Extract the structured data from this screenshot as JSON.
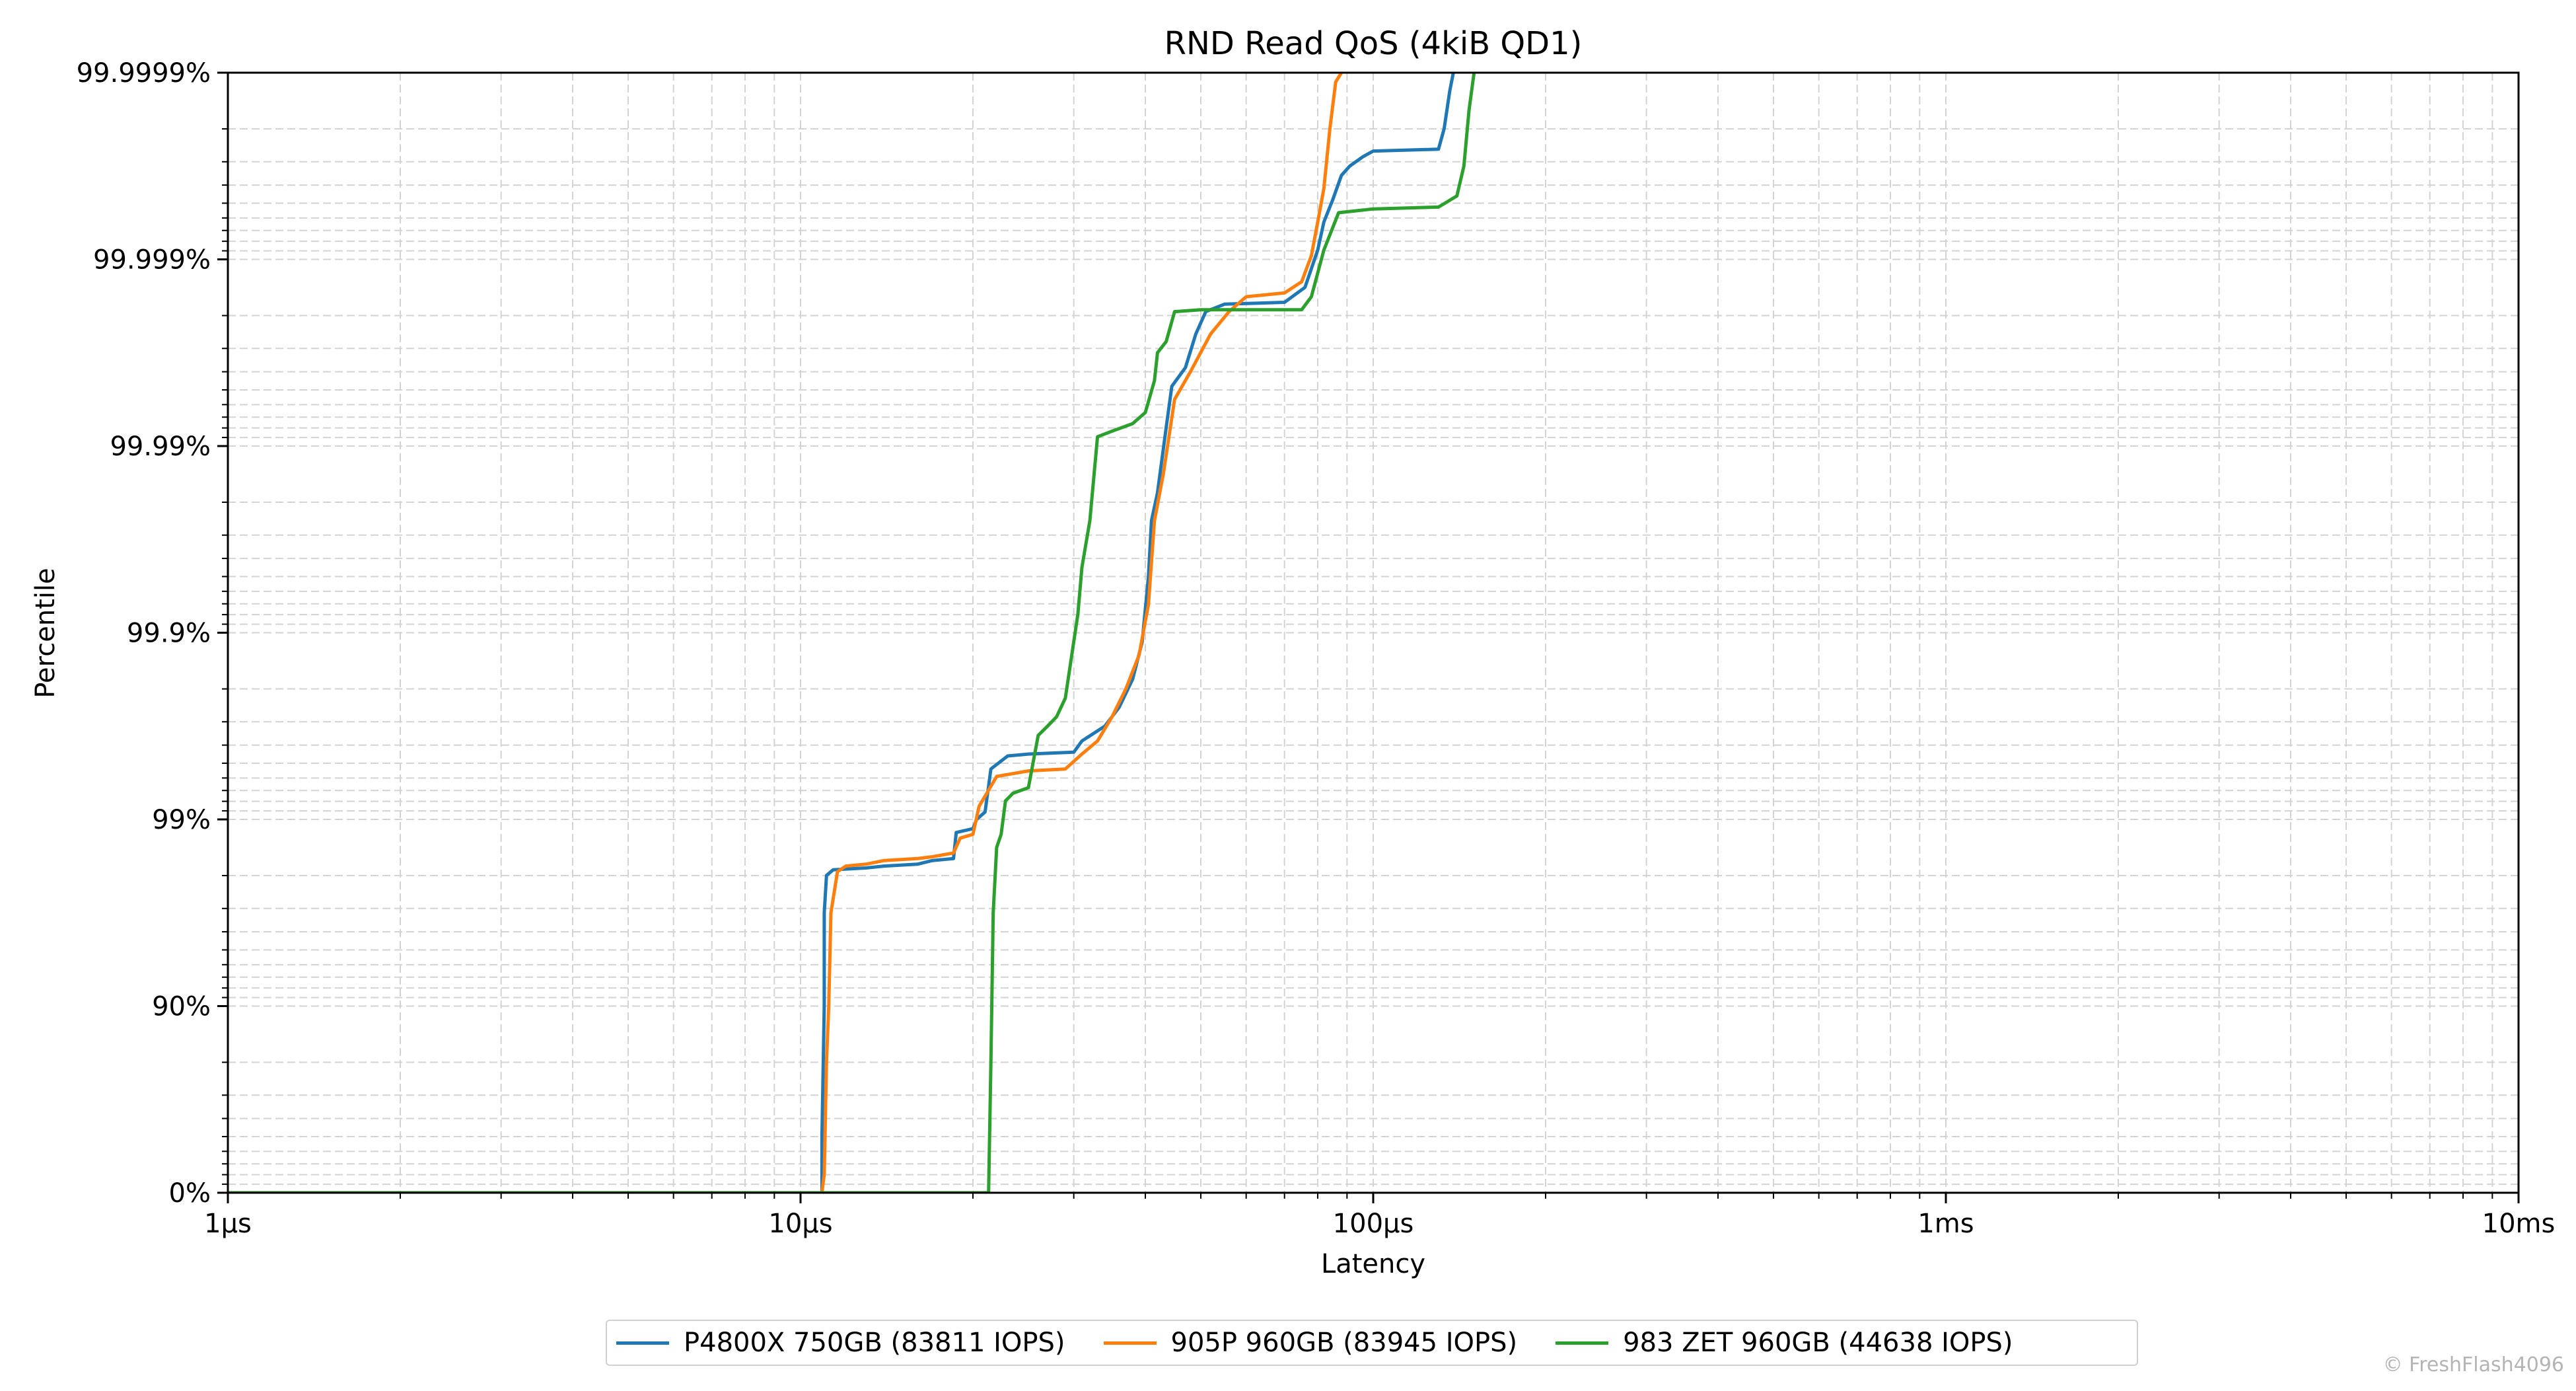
{
  "chart_data": {
    "type": "line",
    "title": "RND Read QoS (4kiB QD1)",
    "xlabel": "Latency",
    "ylabel": "Percentile",
    "x_scale": "log",
    "y_scale": "nines",
    "xlim_us": [
      1,
      10000
    ],
    "ylim_nines": [
      0,
      6
    ],
    "grid": true,
    "legend_position": "bottom-center",
    "x_ticks": [
      {
        "value": 1,
        "label": "1µs"
      },
      {
        "value": 10,
        "label": "10µs"
      },
      {
        "value": 100,
        "label": "100µs"
      },
      {
        "value": 1000,
        "label": "1ms"
      },
      {
        "value": 10000,
        "label": "10ms"
      }
    ],
    "y_ticks": [
      {
        "nines": 0,
        "label": "0%"
      },
      {
        "nines": 1,
        "label": "90%"
      },
      {
        "nines": 2,
        "label": "99%"
      },
      {
        "nines": 3,
        "label": "99.9%"
      },
      {
        "nines": 4,
        "label": "99.99%"
      },
      {
        "nines": 5,
        "label": "99.999%"
      },
      {
        "nines": 6,
        "label": "99.9999%"
      }
    ],
    "series": [
      {
        "name": "P4800X 750GB (83811 IOPS)",
        "color": "#1f77b4",
        "points_us_nines": [
          [
            1,
            0
          ],
          [
            10.9,
            0
          ],
          [
            10.9,
            0.3
          ],
          [
            11.0,
            1.0
          ],
          [
            11.0,
            1.5
          ],
          [
            11.1,
            1.7
          ],
          [
            11.4,
            1.73
          ],
          [
            13,
            1.74
          ],
          [
            14,
            1.75
          ],
          [
            16,
            1.76
          ],
          [
            17,
            1.78
          ],
          [
            18.5,
            1.79
          ],
          [
            18.7,
            1.93
          ],
          [
            20,
            1.95
          ],
          [
            20.3,
            2.0
          ],
          [
            21,
            2.04
          ],
          [
            21.5,
            2.27
          ],
          [
            23,
            2.34
          ],
          [
            25,
            2.35
          ],
          [
            30,
            2.36
          ],
          [
            31,
            2.42
          ],
          [
            34,
            2.5
          ],
          [
            36,
            2.6
          ],
          [
            38,
            2.75
          ],
          [
            39.5,
            2.95
          ],
          [
            40.5,
            3.3
          ],
          [
            41,
            3.6
          ],
          [
            42,
            3.75
          ],
          [
            43.5,
            4.1
          ],
          [
            44.5,
            4.32
          ],
          [
            47,
            4.42
          ],
          [
            49,
            4.6
          ],
          [
            51,
            4.72
          ],
          [
            55,
            4.76
          ],
          [
            70,
            4.77
          ],
          [
            76,
            4.85
          ],
          [
            80,
            5.05
          ],
          [
            82,
            5.2
          ],
          [
            85,
            5.32
          ],
          [
            88,
            5.45
          ],
          [
            91,
            5.5
          ],
          [
            96,
            5.55
          ],
          [
            100,
            5.58
          ],
          [
            130,
            5.59
          ],
          [
            133,
            5.7
          ],
          [
            136,
            5.9
          ],
          [
            138,
            6.0
          ]
        ]
      },
      {
        "name": "905P 960GB (83945 IOPS)",
        "color": "#ff7f0e",
        "points_us_nines": [
          [
            1,
            0
          ],
          [
            10.9,
            0
          ],
          [
            11.0,
            0.1
          ],
          [
            11.1,
            0.7
          ],
          [
            11.2,
            1.0
          ],
          [
            11.3,
            1.5
          ],
          [
            11.6,
            1.72
          ],
          [
            12,
            1.75
          ],
          [
            13,
            1.76
          ],
          [
            14,
            1.78
          ],
          [
            16,
            1.79
          ],
          [
            17,
            1.8
          ],
          [
            18.5,
            1.82
          ],
          [
            19,
            1.9
          ],
          [
            20,
            1.92
          ],
          [
            20.5,
            2.07
          ],
          [
            22,
            2.23
          ],
          [
            25,
            2.26
          ],
          [
            29,
            2.27
          ],
          [
            31,
            2.35
          ],
          [
            33,
            2.42
          ],
          [
            35,
            2.55
          ],
          [
            37,
            2.7
          ],
          [
            39,
            2.88
          ],
          [
            40.5,
            3.15
          ],
          [
            41.5,
            3.6
          ],
          [
            43,
            3.85
          ],
          [
            45,
            4.25
          ],
          [
            48,
            4.4
          ],
          [
            52,
            4.6
          ],
          [
            56,
            4.72
          ],
          [
            60,
            4.8
          ],
          [
            70,
            4.82
          ],
          [
            75,
            4.88
          ],
          [
            78,
            5.02
          ],
          [
            80,
            5.2
          ],
          [
            82,
            5.38
          ],
          [
            84,
            5.7
          ],
          [
            86,
            5.95
          ],
          [
            88,
            6.0
          ]
        ]
      },
      {
        "name": "983 ZET 960GB (44638 IOPS)",
        "color": "#2ca02c",
        "points_us_nines": [
          [
            1,
            0
          ],
          [
            21.3,
            0
          ],
          [
            21.5,
            0.7
          ],
          [
            21.7,
            1.5
          ],
          [
            22,
            1.85
          ],
          [
            22.4,
            1.92
          ],
          [
            22.8,
            2.1
          ],
          [
            23.5,
            2.14
          ],
          [
            25,
            2.17
          ],
          [
            26,
            2.45
          ],
          [
            27,
            2.5
          ],
          [
            28,
            2.55
          ],
          [
            29,
            2.65
          ],
          [
            30.5,
            3.1
          ],
          [
            31,
            3.35
          ],
          [
            32,
            3.6
          ],
          [
            33,
            4.05
          ],
          [
            35,
            4.08
          ],
          [
            38,
            4.12
          ],
          [
            40,
            4.18
          ],
          [
            41.5,
            4.35
          ],
          [
            42,
            4.5
          ],
          [
            43.5,
            4.56
          ],
          [
            45,
            4.72
          ],
          [
            50,
            4.73
          ],
          [
            60,
            4.73
          ],
          [
            75,
            4.73
          ],
          [
            78,
            4.8
          ],
          [
            82,
            5.05
          ],
          [
            87,
            5.25
          ],
          [
            100,
            5.27
          ],
          [
            130,
            5.28
          ],
          [
            140,
            5.34
          ],
          [
            144,
            5.5
          ],
          [
            147,
            5.8
          ],
          [
            150,
            6.0
          ]
        ]
      }
    ]
  },
  "copyright": "© FreshFlash4096"
}
